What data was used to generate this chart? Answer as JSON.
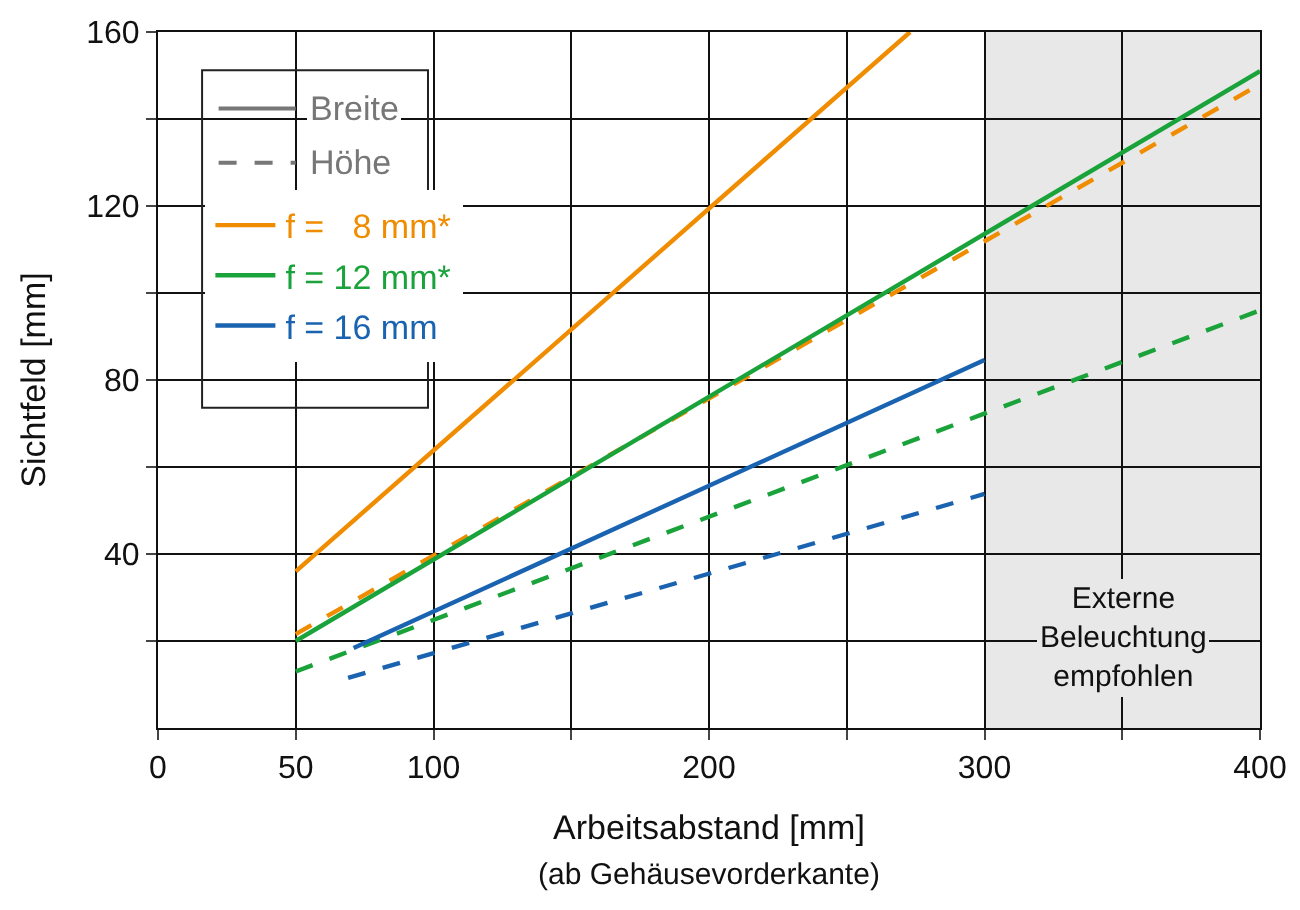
{
  "chart_data": {
    "type": "line",
    "xlabel": "Arbeitsabstand [mm]",
    "ylabel": "Sichtfeld [mm]",
    "annotations": [
      "(ab Gehäusevorderkante)",
      "Breite",
      "Höhe"
    ],
    "xlim": [
      0,
      400
    ],
    "xticks": [
      0,
      50,
      100,
      {
        "value": 150,
        "label": null
      },
      200,
      {
        "value": 250,
        "label": null
      },
      300,
      {
        "value": 350,
        "label": null
      },
      400
    ],
    "ylim": [
      0,
      160
    ],
    "yticks": [
      {
        "value": 20,
        "label": null
      },
      40,
      {
        "value": 60,
        "label": null
      },
      80,
      {
        "value": 100,
        "label": null
      },
      120,
      {
        "value": 140,
        "label": null
      },
      160
    ],
    "grid": true,
    "legend": "top left",
    "bands": [
      {
        "axis": "x",
        "from": 300,
        "to": 400,
        "label": "Externe Beleuchtung empfohlen",
        "color": "#e8e8e8"
      }
    ],
    "series": [
      {
        "name": "f =   8 mm*",
        "color": "#f08c00",
        "line_style": "solid",
        "x": [
          50,
          273
        ],
        "values": [
          36,
          160
        ]
      },
      {
        "color": "#f08c00",
        "line_style": "dashed",
        "x": [
          50,
          400
        ],
        "values": [
          21.6,
          148
        ]
      },
      {
        "name": "f = 12 mm*",
        "color": "#1aa33a",
        "line_style": "solid",
        "x": [
          50,
          400
        ],
        "values": [
          20,
          151
        ]
      },
      {
        "color": "#1aa33a",
        "line_style": "dashed",
        "x": [
          50,
          400
        ],
        "values": [
          13,
          96
        ]
      },
      {
        "name": "f = 16 mm",
        "color": "#1a63b0",
        "line_style": "solid",
        "x": [
          71,
          300
        ],
        "values": [
          18.4,
          84.6
        ]
      },
      {
        "color": "#1a63b0",
        "line_style": "dashed",
        "x": [
          69,
          300
        ],
        "values": [
          11.5,
          53.8
        ]
      }
    ]
  }
}
